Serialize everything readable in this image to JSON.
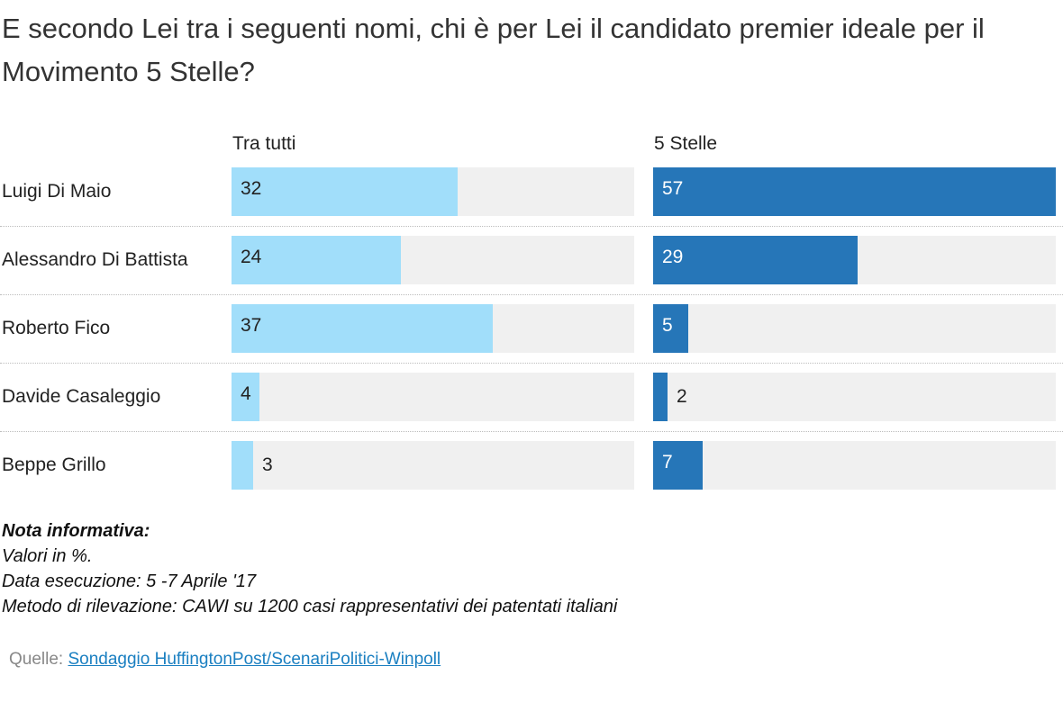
{
  "title": "E secondo Lei tra i seguenti nomi, chi è per Lei il candidato premier ideale per il Movimento 5 Stelle?",
  "chart_data": {
    "type": "bar",
    "orientation": "horizontal",
    "categories": [
      "Luigi Di Maio",
      "Alessandro Di Battista",
      "Roberto Fico",
      "Davide Casaleggio",
      "Beppe Grillo"
    ],
    "series": [
      {
        "name": "Tra tutti",
        "values": [
          32,
          24,
          37,
          4,
          3
        ],
        "color": "#a1defa"
      },
      {
        "name": "5 Stelle",
        "values": [
          57,
          29,
          5,
          2,
          7
        ],
        "color": "#2676b8"
      }
    ],
    "xlim": [
      0,
      57
    ],
    "track_color": "#f0f0f0"
  },
  "note": {
    "heading": "Nota informativa:",
    "lines": [
      "Valori in %.",
      "Data esecuzione: 5 -7  Aprile '17",
      "Metodo di rilevazione: CAWI su 1200 casi rappresentativi dei patentati italiani"
    ]
  },
  "source": {
    "label": "Quelle:",
    "link_text": "Sondaggio HuffingtonPost/ScenariPolitici-Winpoll"
  }
}
